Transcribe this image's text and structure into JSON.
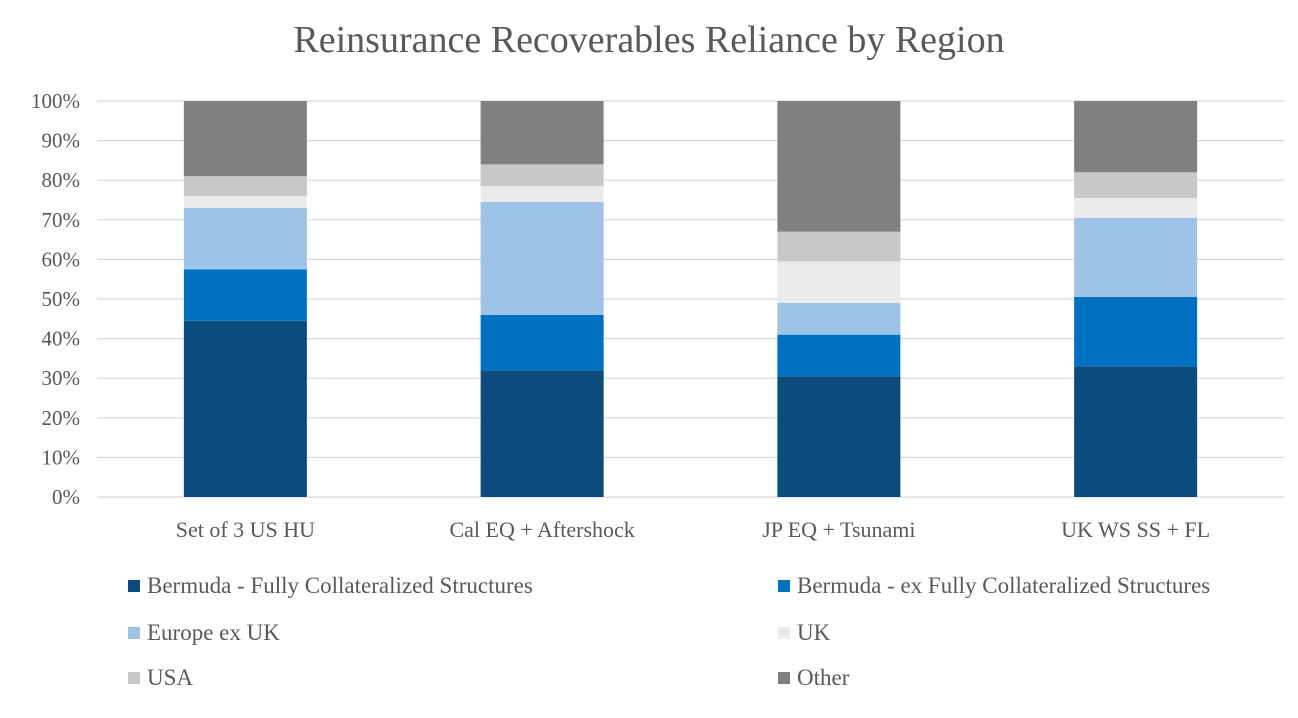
{
  "chart_data": {
    "type": "bar",
    "stacked": true,
    "title": "Reinsurance Recoverables Reliance by Region",
    "categories": [
      "Set of 3 US HU",
      "Cal EQ + Aftershock",
      "JP EQ + Tsunami",
      "UK WS SS + FL"
    ],
    "ylim": [
      0,
      100
    ],
    "yticks": [
      "0%",
      "10%",
      "20%",
      "30%",
      "40%",
      "50%",
      "60%",
      "70%",
      "80%",
      "90%",
      "100%"
    ],
    "grid": true,
    "legend_position": "bottom",
    "series": [
      {
        "name": "Bermuda - Fully Collateralized Structures",
        "color": "#0b4c7d",
        "values": [
          44.5,
          32,
          30.5,
          33
        ]
      },
      {
        "name": "Bermuda - ex Fully Collateralized Structures",
        "color": "#0070c0",
        "values": [
          13,
          14,
          10.5,
          17.5
        ]
      },
      {
        "name": "Europe ex UK",
        "color": "#9dc3e6",
        "values": [
          15.5,
          28.5,
          8,
          20
        ]
      },
      {
        "name": "UK",
        "color": "#ebebeb",
        "values": [
          3,
          4,
          10.5,
          5
        ]
      },
      {
        "name": "USA",
        "color": "#c8c8c8",
        "values": [
          5,
          5.5,
          7.5,
          6.5
        ]
      },
      {
        "name": "Other",
        "color": "#808080",
        "values": [
          19,
          16,
          33,
          18
        ]
      }
    ]
  }
}
